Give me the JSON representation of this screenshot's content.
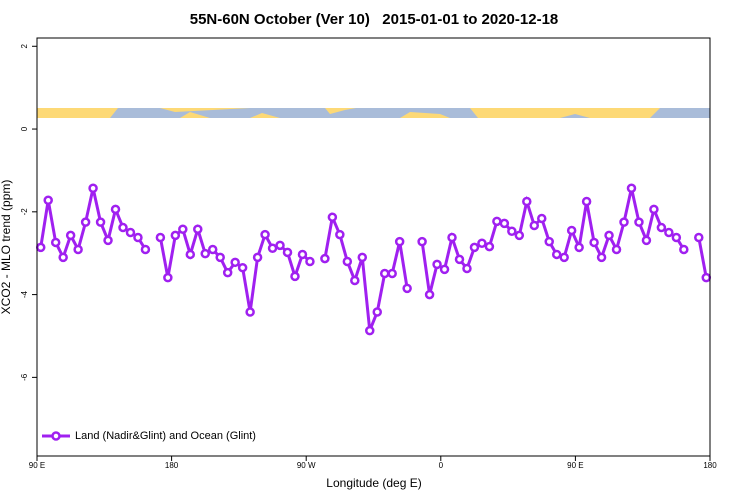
{
  "chart_data": {
    "type": "line",
    "title": "55N-60N October (Ver 10)   2015-01-01 to 2020-12-18",
    "x_label": "Longitude (deg E)",
    "y_label": "XCO2 - MLO trend (ppm)",
    "x": [
      92.5,
      97.5,
      102.5,
      107.5,
      112.5,
      117.5,
      122.5,
      127.5,
      132.5,
      137.5,
      142.5,
      147.5,
      152.5,
      157.5,
      162.5,
      167.5,
      172.5,
      177.5,
      182.5,
      187.5,
      192.5,
      197.5,
      202.5,
      207.5,
      212.5,
      217.5,
      222.5,
      227.5,
      232.5,
      237.5,
      242.5,
      247.5,
      252.5,
      257.5,
      262.5,
      267.5,
      272.5,
      277.5,
      282.5,
      287.5,
      292.5,
      297.5,
      302.5,
      307.5,
      312.5,
      317.5,
      322.5,
      327.5,
      332.5,
      337.5,
      342.5,
      347.5,
      352.5,
      357.5,
      362.5,
      367.5,
      372.5,
      377.5,
      382.5,
      387.5,
      392.5,
      397.5,
      402.5,
      407.5,
      412.5,
      417.5,
      422.5,
      427.5,
      432.5,
      437.5,
      442.5,
      447.5,
      452.5,
      457.5,
      462.5,
      467.5,
      472.5,
      477.5,
      482.5,
      487.5,
      492.5,
      497.5,
      502.5,
      507.5,
      512.5,
      517.5,
      522.5,
      527.5,
      532.5,
      537.5
    ],
    "series": [
      {
        "name": "Land (Nadir&Glint) and Ocean (Glint)",
        "color": "#a020f0",
        "values": [
          -2.86,
          -1.72,
          -2.74,
          -3.1,
          -2.57,
          -2.91,
          -2.25,
          -1.43,
          -2.25,
          -2.69,
          -1.94,
          -2.38,
          -2.5,
          -2.62,
          -2.91,
          null,
          -2.62,
          -3.59,
          -2.57,
          -2.42,
          -3.03,
          -2.42,
          -3.01,
          -2.91,
          -3.1,
          -3.47,
          -3.22,
          -3.35,
          -4.42,
          -3.1,
          -2.55,
          -2.88,
          -2.81,
          -2.98,
          -3.56,
          -3.03,
          -3.2,
          null,
          -3.13,
          -2.13,
          -2.55,
          -3.2,
          -3.66,
          -3.1,
          -4.87,
          -4.42,
          -3.49,
          -3.49,
          -2.72,
          -3.85,
          null,
          -2.72,
          -4.0,
          -3.27,
          -3.39,
          -2.62,
          -3.15,
          -3.37,
          -2.86,
          -2.76,
          -2.84,
          -2.23,
          -2.28,
          -2.47,
          -2.57,
          -1.75,
          -2.33,
          -2.16,
          -2.72,
          -3.03,
          -3.1,
          -2.45,
          -2.86,
          -1.75,
          -2.74,
          -3.1,
          -2.57,
          -2.91,
          -2.25,
          -1.43,
          -2.25,
          -2.69,
          -1.94,
          -2.38,
          -2.5,
          -2.62,
          -2.91,
          null,
          -2.62,
          -3.59
        ]
      }
    ],
    "xlim": [
      90,
      540
    ],
    "ylim": [
      -7.9,
      2.2
    ],
    "xticks": [
      {
        "value": 90,
        "label": "90 E"
      },
      180,
      {
        "value": 270,
        "label": "90 W"
      },
      {
        "value": 360,
        "label": "0"
      },
      {
        "value": 450,
        "label": "90 E"
      },
      {
        "value": 540,
        "label": "180"
      }
    ],
    "yticks": [
      -6,
      -4,
      -2,
      0,
      2
    ],
    "legend": "bottom-left"
  }
}
